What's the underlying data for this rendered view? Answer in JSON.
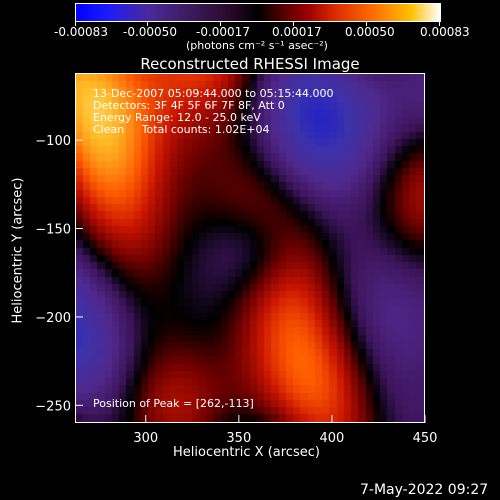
{
  "colorbar": {
    "tick_labels": [
      "-0.00083",
      "-0.00050",
      "-0.00017",
      "0.00017",
      "0.00050",
      "0.00083"
    ],
    "unit_label": "(photons cm⁻² s⁻¹ asec⁻²)"
  },
  "chart_data": {
    "type": "heatmap",
    "title": "Reconstructed RHESSI Image",
    "xlabel": "Heliocentric X (arcsec)",
    "ylabel": "Heliocentric Y (arcsec)",
    "xlim": [
      262,
      450
    ],
    "ylim": [
      -260,
      -62
    ],
    "x_ticks": [
      300,
      350,
      400,
      450
    ],
    "y_ticks": [
      -100,
      -150,
      -200,
      -250
    ],
    "colormap_range": [
      -0.00083,
      0.00083
    ],
    "annotations": [
      "13-Dec-2007 05:09:44.000 to 05:15:44.000",
      "Detectors: 3F 4F 5F 6F 7F 8F, Att 0",
      "Energy Range: 12.0 - 25.0 keV",
      "Clean     Total counts: 1.02E+04",
      "Position of Peak = [262,-113]"
    ],
    "peak_position": [
      262,
      -113
    ]
  },
  "timestamp": "7-May-2022 09:27"
}
